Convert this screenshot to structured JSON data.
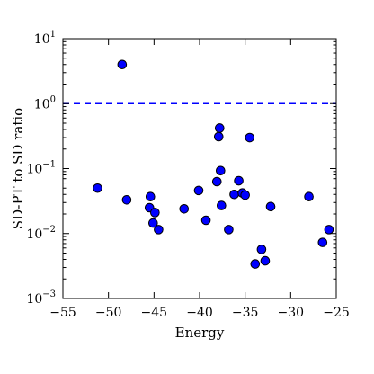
{
  "chart_data": {
    "type": "scatter",
    "xlabel": "Energy",
    "ylabel": "SD-PT to SD ratio",
    "xlim": [
      -55,
      -25
    ],
    "ylim": [
      0.001,
      10
    ],
    "y_scale": "log",
    "x_ticks": [
      -55,
      -50,
      -45,
      -40,
      -35,
      -30,
      -25
    ],
    "x_tick_labels": [
      "−55",
      "−50",
      "−45",
      "−40",
      "−35",
      "−30",
      "−25"
    ],
    "y_ticks": [
      {
        "value": 0.001,
        "base": "10",
        "exp": "-3"
      },
      {
        "value": 0.01,
        "base": "10",
        "exp": "-2"
      },
      {
        "value": 0.1,
        "base": "10",
        "exp": "-1"
      },
      {
        "value": 1,
        "base": "10",
        "exp": "0"
      },
      {
        "value": 10,
        "base": "10",
        "exp": "1"
      }
    ],
    "reference_line": {
      "y": 1,
      "style": "dashed",
      "color": "#0000ff"
    },
    "marker_color": "#0000ff",
    "grid": false,
    "points": [
      {
        "x": -48.5,
        "y": 4.0
      },
      {
        "x": -51.2,
        "y": 0.05
      },
      {
        "x": -48.0,
        "y": 0.033
      },
      {
        "x": -45.4,
        "y": 0.037
      },
      {
        "x": -45.5,
        "y": 0.025
      },
      {
        "x": -44.9,
        "y": 0.021
      },
      {
        "x": -45.1,
        "y": 0.0145
      },
      {
        "x": -44.5,
        "y": 0.0115
      },
      {
        "x": -41.7,
        "y": 0.024
      },
      {
        "x": -40.1,
        "y": 0.046
      },
      {
        "x": -39.3,
        "y": 0.016
      },
      {
        "x": -38.1,
        "y": 0.063
      },
      {
        "x": -37.8,
        "y": 0.42
      },
      {
        "x": -37.9,
        "y": 0.31
      },
      {
        "x": -37.7,
        "y": 0.093
      },
      {
        "x": -37.6,
        "y": 0.027
      },
      {
        "x": -36.8,
        "y": 0.0115
      },
      {
        "x": -36.2,
        "y": 0.04
      },
      {
        "x": -35.7,
        "y": 0.065
      },
      {
        "x": -35.3,
        "y": 0.042
      },
      {
        "x": -35.0,
        "y": 0.039
      },
      {
        "x": -34.5,
        "y": 0.3
      },
      {
        "x": -33.9,
        "y": 0.0034
      },
      {
        "x": -33.2,
        "y": 0.0057
      },
      {
        "x": -32.8,
        "y": 0.0038
      },
      {
        "x": -32.2,
        "y": 0.026
      },
      {
        "x": -28.0,
        "y": 0.037
      },
      {
        "x": -26.5,
        "y": 0.0073
      },
      {
        "x": -25.8,
        "y": 0.0115
      }
    ]
  }
}
